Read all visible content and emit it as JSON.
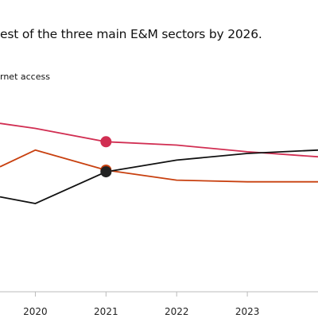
{
  "title": "est of the three main E&M sectors by 2026.",
  "legend": {
    "visible_label": "rnet access"
  },
  "chart_data": {
    "type": "line",
    "title": "est of the three main E&M sectors by 2026.",
    "xlabel": "",
    "ylabel": "",
    "x_tick_labels": [
      "2020",
      "2021",
      "2022",
      "2023"
    ],
    "xlim": [
      2019.5,
      2024.0
    ],
    "ylim": [
      0,
      100
    ],
    "grid": false,
    "x": [
      2019.5,
      2020,
      2021,
      2022,
      2023,
      2024.0
    ],
    "series": [
      {
        "name": "",
        "color": "#d12e52",
        "values": [
          88,
          85,
          77,
          75,
          71,
          68
        ],
        "highlight_x": 2021,
        "marker_color": "#d12e52"
      },
      {
        "name": "",
        "color": "#c8400f",
        "values": [
          62,
          72,
          60,
          54,
          53,
          53
        ],
        "highlight_x": 2021,
        "marker_color": "#c8400f"
      },
      {
        "name": "",
        "color": "#111111",
        "values": [
          44,
          40,
          59,
          66,
          70,
          72
        ],
        "highlight_x": 2021,
        "marker_color": "#222222"
      }
    ]
  }
}
